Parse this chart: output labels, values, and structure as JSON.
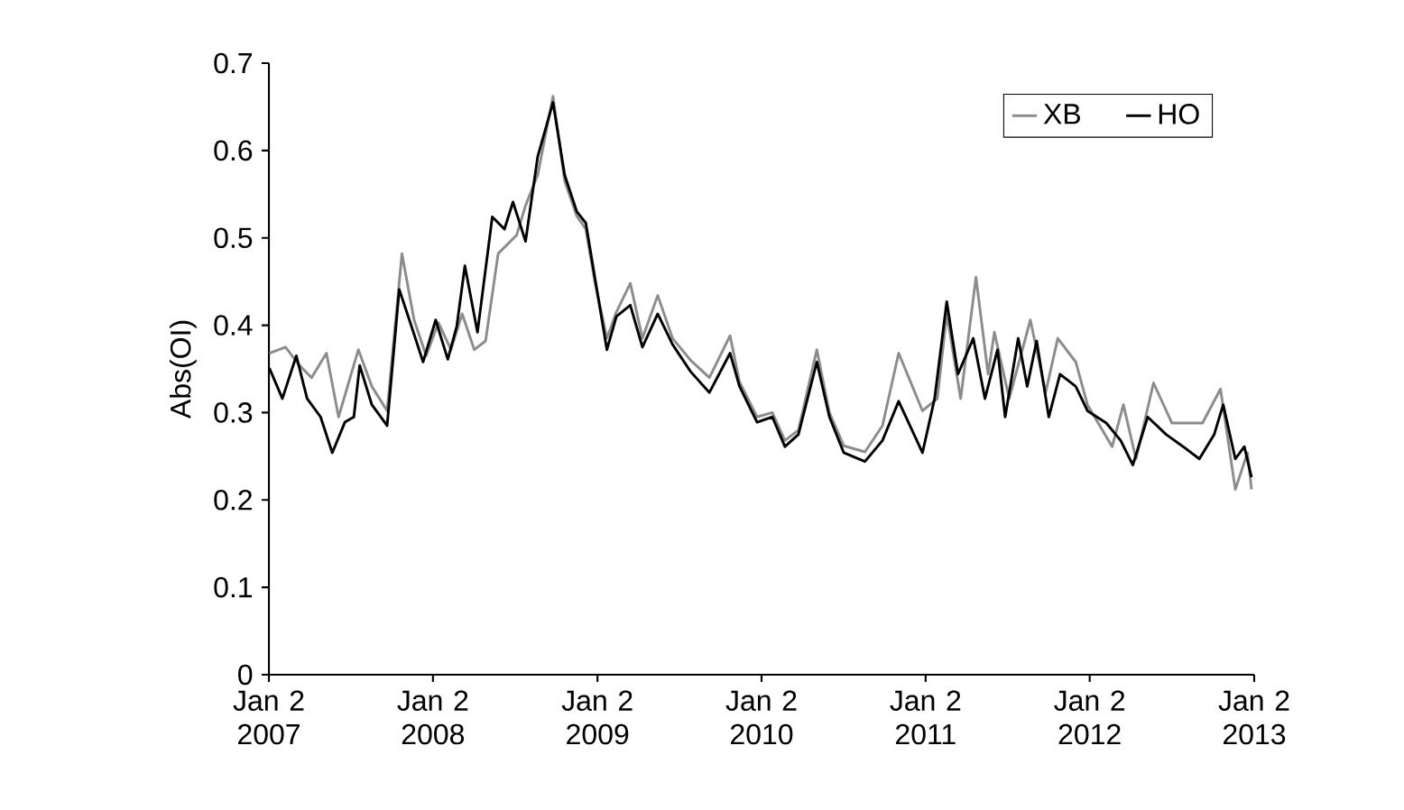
{
  "chart_data": {
    "type": "line",
    "ylabel": "Abs(OI)",
    "xlim": [
      "2007-01-02",
      "2013-01-02"
    ],
    "ylim": [
      0,
      0.7
    ],
    "xticks": [
      {
        "value": "2007-01-02",
        "label": "Jan 2 2007"
      },
      {
        "value": "2008-01-02",
        "label": "Jan 2 2008"
      },
      {
        "value": "2009-01-02",
        "label": "Jan 2 2009"
      },
      {
        "value": "2010-01-02",
        "label": "Jan 2 2010"
      },
      {
        "value": "2011-01-02",
        "label": "Jan 2 2011"
      },
      {
        "value": "2012-01-02",
        "label": "Jan 2 2012"
      },
      {
        "value": "2013-01-02",
        "label": "Jan 2 2013"
      }
    ],
    "yticks": [
      0,
      0.1,
      0.2,
      0.3,
      0.4,
      0.5,
      0.6,
      0.7
    ],
    "legend": "top right",
    "line_style": "solid",
    "series": [
      {
        "name": "XB",
        "color": "#8c8c8c",
        "x": [
          "2007-01-03",
          "2007-02-08",
          "2007-03-11",
          "2007-04-07",
          "2007-05-10",
          "2007-06-06",
          "2007-07-20",
          "2007-08-19",
          "2007-09-22",
          "2007-10-25",
          "2007-11-21",
          "2007-12-18",
          "2008-01-14",
          "2008-02-11",
          "2008-03-07",
          "2008-04-03",
          "2008-04-28",
          "2008-05-26",
          "2008-07-06",
          "2008-07-26",
          "2008-08-22",
          "2008-09-25",
          "2008-10-21",
          "2008-11-17",
          "2008-12-07",
          "2008-12-27",
          "2009-01-23",
          "2009-02-13",
          "2009-03-16",
          "2009-04-12",
          "2009-05-16",
          "2009-06-18",
          "2009-07-28",
          "2009-09-08",
          "2009-10-24",
          "2009-11-14",
          "2009-12-23",
          "2010-01-26",
          "2010-02-23",
          "2010-03-25",
          "2010-05-05",
          "2010-06-02",
          "2010-07-04",
          "2010-08-20",
          "2010-09-28",
          "2010-11-03",
          "2010-12-26",
          "2011-01-28",
          "2011-02-18",
          "2011-03-21",
          "2011-04-24",
          "2011-05-21",
          "2011-06-04",
          "2011-07-07",
          "2011-08-23",
          "2011-09-26",
          "2011-10-23",
          "2011-12-02",
          "2011-12-28",
          "2012-02-21",
          "2012-03-17",
          "2012-04-14",
          "2012-05-23",
          "2012-07-03",
          "2012-09-09",
          "2012-10-19",
          "2012-11-21",
          "2012-12-18",
          "2012-12-27"
        ],
        "values": [
          0.368,
          0.375,
          0.354,
          0.34,
          0.368,
          0.295,
          0.372,
          0.33,
          0.302,
          0.482,
          0.406,
          0.365,
          0.403,
          0.372,
          0.413,
          0.372,
          0.382,
          0.482,
          0.503,
          0.537,
          0.572,
          0.662,
          0.565,
          0.525,
          0.51,
          0.45,
          0.385,
          0.415,
          0.448,
          0.385,
          0.434,
          0.385,
          0.36,
          0.34,
          0.388,
          0.335,
          0.295,
          0.3,
          0.268,
          0.28,
          0.372,
          0.3,
          0.262,
          0.255,
          0.285,
          0.368,
          0.302,
          0.316,
          0.413,
          0.316,
          0.455,
          0.344,
          0.392,
          0.316,
          0.406,
          0.323,
          0.385,
          0.358,
          0.309,
          0.261,
          0.309,
          0.247,
          0.334,
          0.288,
          0.288,
          0.327,
          0.212,
          0.254,
          0.212
        ]
      },
      {
        "name": "HO",
        "color": "#000000",
        "x": [
          "2007-01-03",
          "2007-02-01",
          "2007-03-04",
          "2007-03-28",
          "2007-04-27",
          "2007-05-23",
          "2007-06-20",
          "2007-07-10",
          "2007-07-23",
          "2007-08-19",
          "2007-09-22",
          "2007-10-19",
          "2007-11-15",
          "2007-12-11",
          "2008-01-08",
          "2008-02-04",
          "2008-02-24",
          "2008-03-13",
          "2008-04-10",
          "2008-05-13",
          "2008-06-09",
          "2008-06-28",
          "2008-07-26",
          "2008-08-22",
          "2008-09-25",
          "2008-10-21",
          "2008-11-17",
          "2008-12-07",
          "2008-12-27",
          "2009-01-23",
          "2009-02-13",
          "2009-03-16",
          "2009-04-12",
          "2009-05-16",
          "2009-06-18",
          "2009-07-28",
          "2009-09-08",
          "2009-10-24",
          "2009-11-14",
          "2009-12-23",
          "2010-01-26",
          "2010-02-23",
          "2010-03-25",
          "2010-05-05",
          "2010-06-02",
          "2010-07-04",
          "2010-08-20",
          "2010-09-28",
          "2010-11-03",
          "2010-12-26",
          "2011-01-22",
          "2011-02-18",
          "2011-03-15",
          "2011-04-18",
          "2011-05-14",
          "2011-06-11",
          "2011-06-28",
          "2011-07-27",
          "2011-08-16",
          "2011-09-06",
          "2011-10-03",
          "2011-10-28",
          "2011-12-02",
          "2011-12-28",
          "2012-02-08",
          "2012-03-11",
          "2012-04-07",
          "2012-05-10",
          "2012-06-20",
          "2012-07-28",
          "2012-09-02",
          "2012-10-05",
          "2012-10-25",
          "2012-11-21",
          "2012-12-11",
          "2012-12-27"
        ],
        "values": [
          0.351,
          0.316,
          0.365,
          0.316,
          0.295,
          0.254,
          0.289,
          0.295,
          0.354,
          0.309,
          0.285,
          0.441,
          0.399,
          0.358,
          0.406,
          0.361,
          0.399,
          0.468,
          0.392,
          0.524,
          0.51,
          0.541,
          0.496,
          0.593,
          0.655,
          0.572,
          0.53,
          0.517,
          0.455,
          0.372,
          0.41,
          0.423,
          0.375,
          0.413,
          0.378,
          0.347,
          0.323,
          0.368,
          0.33,
          0.289,
          0.295,
          0.261,
          0.275,
          0.358,
          0.295,
          0.254,
          0.244,
          0.268,
          0.313,
          0.254,
          0.316,
          0.427,
          0.344,
          0.385,
          0.316,
          0.372,
          0.295,
          0.385,
          0.33,
          0.382,
          0.295,
          0.344,
          0.33,
          0.302,
          0.288,
          0.268,
          0.24,
          0.295,
          0.275,
          0.261,
          0.247,
          0.275,
          0.309,
          0.247,
          0.261,
          0.226
        ]
      }
    ]
  }
}
